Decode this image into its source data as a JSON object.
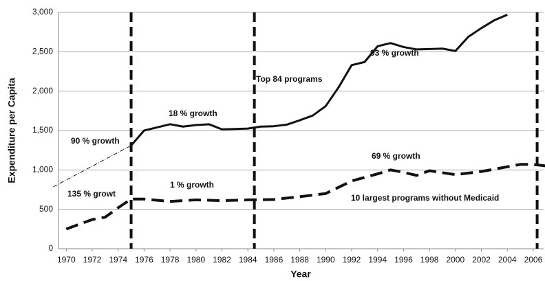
{
  "chart_data": {
    "type": "line",
    "x_label": "Year",
    "y_label": "Expenditure per Capita",
    "xlim": [
      1969.4,
      2006.8
    ],
    "ylim": [
      0,
      3000
    ],
    "xticks": [
      1970,
      1972,
      1974,
      1976,
      1978,
      1980,
      1982,
      1984,
      1986,
      1988,
      1990,
      1992,
      1994,
      1996,
      1998,
      2000,
      2002,
      2004,
      2006
    ],
    "yticks": [
      0,
      500,
      {
        "value": 1000,
        "label": "1,000"
      },
      {
        "value": 1500,
        "label": "1,500"
      },
      {
        "value": 2000,
        "label": "2,000"
      },
      {
        "value": 2500,
        "label": "2,500"
      },
      {
        "value": 3000,
        "label": "3,000"
      }
    ],
    "grid": true,
    "annotations": [
      "90 % growth",
      "135 % growt",
      "18 % growth",
      "1 % growth",
      "93 % growth",
      "69 %  growth"
    ],
    "vlines": [
      1975,
      1984.5,
      2006.3
    ],
    "series": [
      {
        "name": "Top 84 programs",
        "color": "#111111",
        "style": "solid",
        "x": [
          1975,
          1976,
          1977,
          1978,
          1979,
          1980,
          1981,
          1982,
          1983,
          1984,
          1985,
          1986,
          1987,
          1988,
          1989,
          1990,
          1991,
          1992,
          1993,
          1994,
          1995,
          1996,
          1997,
          1998,
          1999,
          2000,
          2001,
          2002,
          2003,
          2004
        ],
        "values": [
          1310,
          1500,
          1540,
          1580,
          1550,
          1570,
          1580,
          1515,
          1520,
          1525,
          1550,
          1555,
          1575,
          1630,
          1690,
          1810,
          2050,
          2330,
          2370,
          2570,
          2610,
          2560,
          2530,
          2535,
          2540,
          2510,
          2690,
          2800,
          2900,
          2970
        ]
      },
      {
        "name": "10 largest programs without Medicaid",
        "color": "#111111",
        "style": "dashed",
        "x": [
          1970,
          1972,
          1973,
          1974,
          1975,
          1976,
          1978,
          1980,
          1982,
          1984,
          1986,
          1988,
          1990,
          1992,
          1994,
          1995,
          1996,
          1997,
          1998,
          2000,
          2002,
          2004,
          2005,
          2006,
          2007
        ],
        "values": [
          250,
          370,
          400,
          520,
          630,
          630,
          600,
          620,
          610,
          620,
          625,
          660,
          700,
          860,
          950,
          1000,
          970,
          930,
          990,
          940,
          980,
          1040,
          1070,
          1070,
          1050
        ]
      }
    ],
    "trend_line": {
      "x": [
        1969,
        1975
      ],
      "values": [
        785,
        1310
      ]
    }
  }
}
